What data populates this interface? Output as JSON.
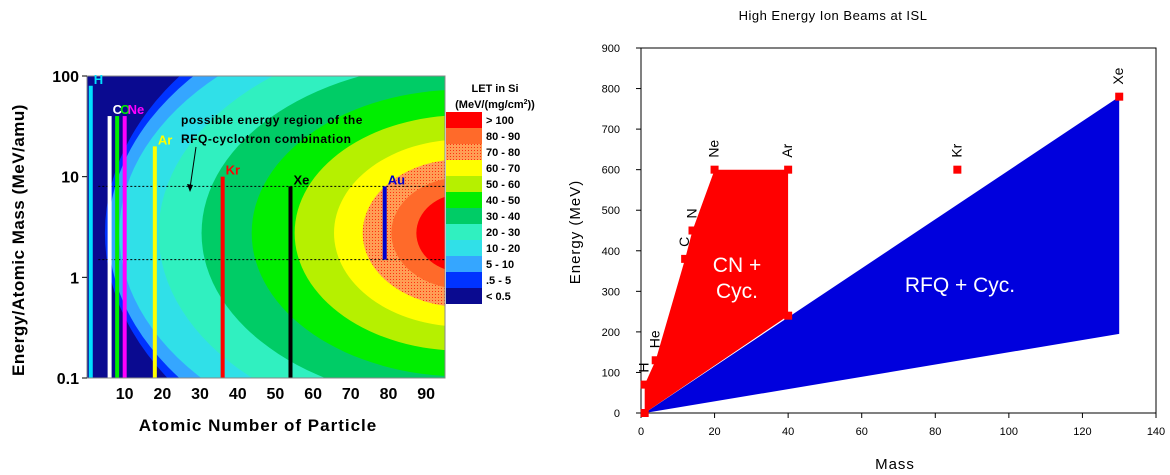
{
  "chart_data": [
    {
      "type": "heatmap",
      "title": "",
      "xlabel": "Atomic Number of Particle",
      "ylabel": "Energy/Atomic Mass (MeV/amu)",
      "xlim": [
        0,
        95
      ],
      "ylim": [
        0.1,
        100
      ],
      "y_scale": "log",
      "x_ticks": [
        "10",
        "20",
        "30",
        "40",
        "50",
        "60",
        "70",
        "80",
        "90"
      ],
      "y_ticks": [
        "0.1",
        "1",
        "10",
        "100"
      ],
      "legend": {
        "title": "LET in Si",
        "units": "(MeV/(mg/cm",
        "units_sup": "2",
        "units_end": "))",
        "placement": "right",
        "entries": [
          {
            "label": "> 100",
            "color": "#ff0000"
          },
          {
            "label": "80 - 90",
            "color": "#ff6a2a"
          },
          {
            "label": "70 - 80",
            "color": "#ff9d55"
          },
          {
            "label": "60 - 70",
            "color": "#ffff00"
          },
          {
            "label": "50 - 60",
            "color": "#b6f000"
          },
          {
            "label": "40 - 50",
            "color": "#00ee00"
          },
          {
            "label": "30 - 40",
            "color": "#00cc66"
          },
          {
            "label": "20 - 30",
            "color": "#30f0c0"
          },
          {
            "label": "10 - 20",
            "color": "#30e0e8"
          },
          {
            "label": "5 - 10",
            "color": "#35a6ff"
          },
          {
            "label": ".5 - 5",
            "color": "#0033ff"
          },
          {
            "label": "< 0.5",
            "color": "#0a0a90"
          }
        ]
      },
      "annotation": [
        "possible energy region of the",
        "RFQ-cyclotron combination"
      ],
      "energy_region": [
        1.5,
        8
      ],
      "elements": [
        {
          "label": "H",
          "z": 1,
          "top": 80,
          "color": "#00e0ff",
          "labelColor": "#00e0ff"
        },
        {
          "label": "C",
          "z": 6,
          "top": 40,
          "color": "#ffffff",
          "labelColor": "#ffffff"
        },
        {
          "label": "O",
          "z": 8,
          "top": 40,
          "color": "#00ee00",
          "labelColor": "#00ee00"
        },
        {
          "label": "Ne",
          "z": 10,
          "top": 40,
          "color": "#ff00ff",
          "labelColor": "#ff00ff"
        },
        {
          "label": "Ar",
          "z": 18,
          "top": 20,
          "color": "#ffff00",
          "labelColor": "#ffff00"
        },
        {
          "label": "Kr",
          "z": 36,
          "top": 10,
          "color": "#ff0000",
          "labelColor": "#ff0000"
        },
        {
          "label": "Xe",
          "z": 54,
          "top": 8,
          "color": "#000000",
          "labelColor": "#000000"
        },
        {
          "label": "Au",
          "z": 79,
          "top": 8,
          "bottom": 1.5,
          "color": "#0000cc",
          "labelColor": "#0000cc"
        }
      ]
    },
    {
      "type": "area",
      "title": "High Energy Ion Beams at ISL",
      "xlabel": "Mass",
      "ylabel": "Energy (MeV)",
      "xlim": [
        0,
        140
      ],
      "ylim": [
        0,
        900
      ],
      "x_ticks": [
        0,
        20,
        40,
        60,
        80,
        100,
        120,
        140
      ],
      "y_ticks": [
        0,
        100,
        200,
        300,
        400,
        500,
        600,
        700,
        800,
        900
      ],
      "series": [
        {
          "name": "CN + Cyc.",
          "color": "#ff0000",
          "x": [
            1,
            1,
            4,
            12,
            14,
            20,
            40,
            40,
            1
          ],
          "y": [
            0,
            70,
            130,
            380,
            450,
            600,
            600,
            240,
            0
          ]
        },
        {
          "name": "RFQ + Cyc.",
          "color": "#0000dd",
          "x": [
            1,
            130,
            130
          ],
          "y": [
            0,
            780,
            195
          ]
        }
      ],
      "points": [
        {
          "label": "H",
          "x": 1,
          "y": 70
        },
        {
          "label": "He",
          "x": 4,
          "y": 130
        },
        {
          "label": "C",
          "x": 12,
          "y": 380
        },
        {
          "label": "N",
          "x": 14,
          "y": 450
        },
        {
          "label": "Ne",
          "x": 20,
          "y": 600
        },
        {
          "label": "Ar",
          "x": 40,
          "y": 600
        },
        {
          "label": "Kr",
          "x": 86,
          "y": 600
        },
        {
          "label": "Xe",
          "x": 130,
          "y": 780
        }
      ],
      "extra_points": [
        {
          "x": 1,
          "y": 0
        },
        {
          "x": 40,
          "y": 240
        }
      ]
    }
  ]
}
